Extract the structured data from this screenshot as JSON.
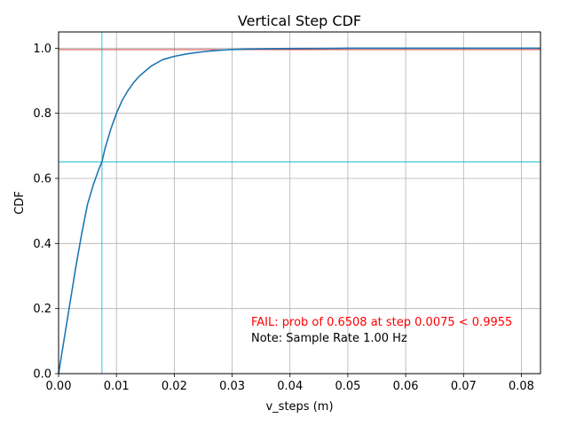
{
  "chart_data": {
    "type": "line",
    "title": "Vertical Step CDF",
    "xlabel": "v_steps (m)",
    "ylabel": "CDF",
    "xlim": [
      0,
      0.0833
    ],
    "ylim": [
      0,
      1.05
    ],
    "x_ticks": [
      "0.00",
      "0.01",
      "0.02",
      "0.03",
      "0.04",
      "0.05",
      "0.06",
      "0.07",
      "0.08"
    ],
    "x_tick_values": [
      0,
      0.01,
      0.02,
      0.03,
      0.04,
      0.05,
      0.06,
      0.07,
      0.08
    ],
    "y_ticks": [
      "0.0",
      "0.2",
      "0.4",
      "0.6",
      "0.8",
      "1.0"
    ],
    "y_tick_values": [
      0,
      0.2,
      0.4,
      0.6,
      0.8,
      1.0
    ],
    "grid": true,
    "series": [
      {
        "color": "#1f77b4",
        "x": [
          0,
          0.001,
          0.002,
          0.003,
          0.004,
          0.005,
          0.006,
          0.007,
          0.0075,
          0.008,
          0.009,
          0.01,
          0.011,
          0.012,
          0.013,
          0.014,
          0.015,
          0.016,
          0.017,
          0.018,
          0.019,
          0.02,
          0.022,
          0.024,
          0.026,
          0.028,
          0.03,
          0.032,
          0.035,
          0.04,
          0.045,
          0.05,
          0.06,
          0.07,
          0.0833
        ],
        "y": [
          0.0,
          0.11,
          0.22,
          0.33,
          0.43,
          0.52,
          0.58,
          0.63,
          0.6508,
          0.69,
          0.75,
          0.8,
          0.84,
          0.87,
          0.895,
          0.915,
          0.93,
          0.945,
          0.955,
          0.965,
          0.97,
          0.975,
          0.982,
          0.987,
          0.991,
          0.994,
          0.996,
          0.997,
          0.998,
          0.999,
          0.9995,
          1.0,
          1.0,
          1.0,
          1.0
        ]
      }
    ],
    "reference_lines": [
      {
        "orientation": "horizontal",
        "value": 0.9955,
        "color": "#d62728"
      },
      {
        "orientation": "horizontal",
        "value": 0.6508,
        "color": "#17becf"
      },
      {
        "orientation": "vertical",
        "value": 0.0075,
        "color": "#17becf"
      }
    ],
    "annotations": [
      {
        "text": "FAIL: prob of 0.6508 at step 0.0075 < 0.9955",
        "color": "#ff0000"
      },
      {
        "text": "Note: Sample Rate 1.00 Hz",
        "color": "#000000"
      }
    ]
  }
}
